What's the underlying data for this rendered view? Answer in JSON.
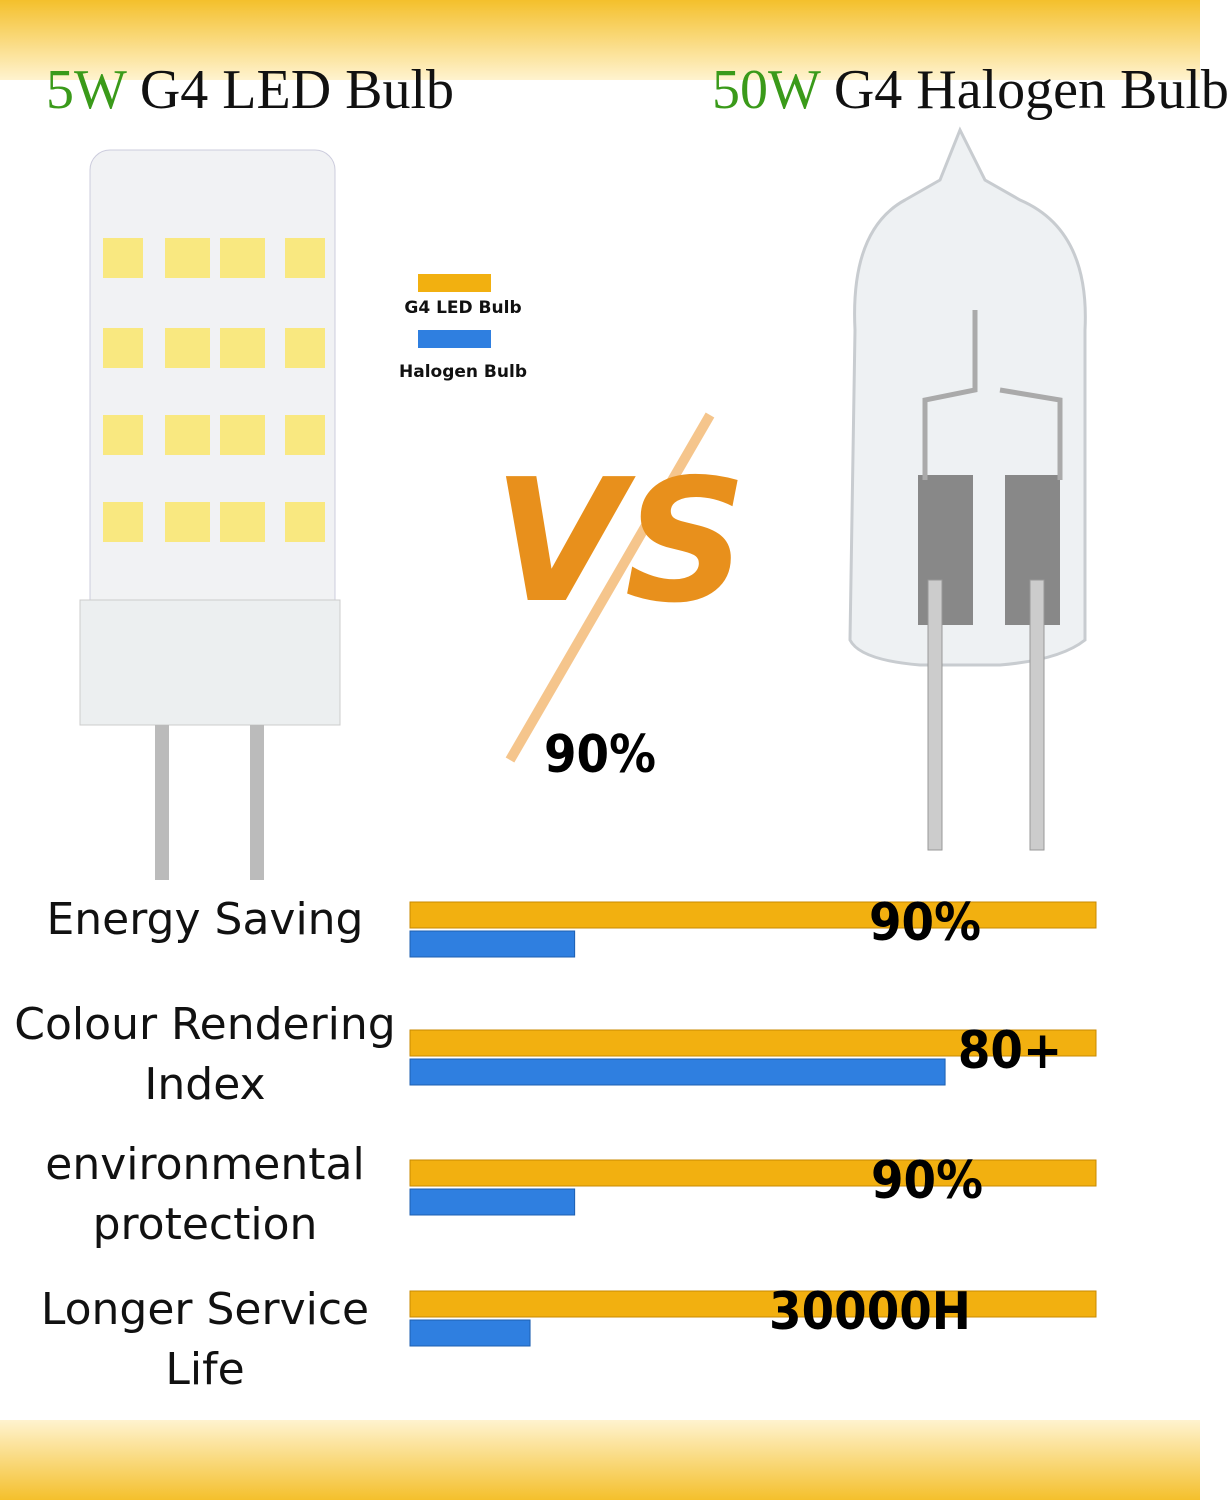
{
  "chart_data": {
    "type": "bar",
    "orientation": "horizontal",
    "title_left": {
      "highlight": "5W",
      "text": "G4 LED Bulb"
    },
    "title_right": {
      "highlight": "50W",
      "text": "G4 Halogen Bulb"
    },
    "vs_label": "VS",
    "center_annotation": "90%",
    "categories": [
      "Energy Saving",
      "Colour Rendering Index",
      "environmental protection",
      "Longer Service Life"
    ],
    "series": [
      {
        "name": "G4 LED Bulb",
        "color": "#f2b010",
        "values": [
          100,
          100,
          100,
          100
        ]
      },
      {
        "name": "Halogen Bulb",
        "color": "#2f7fe0",
        "values": [
          24,
          78,
          24,
          17.5
        ]
      }
    ],
    "annotations": [
      "90%",
      "80+",
      "90%",
      "30000H"
    ],
    "xlim": [
      0,
      100
    ]
  }
}
